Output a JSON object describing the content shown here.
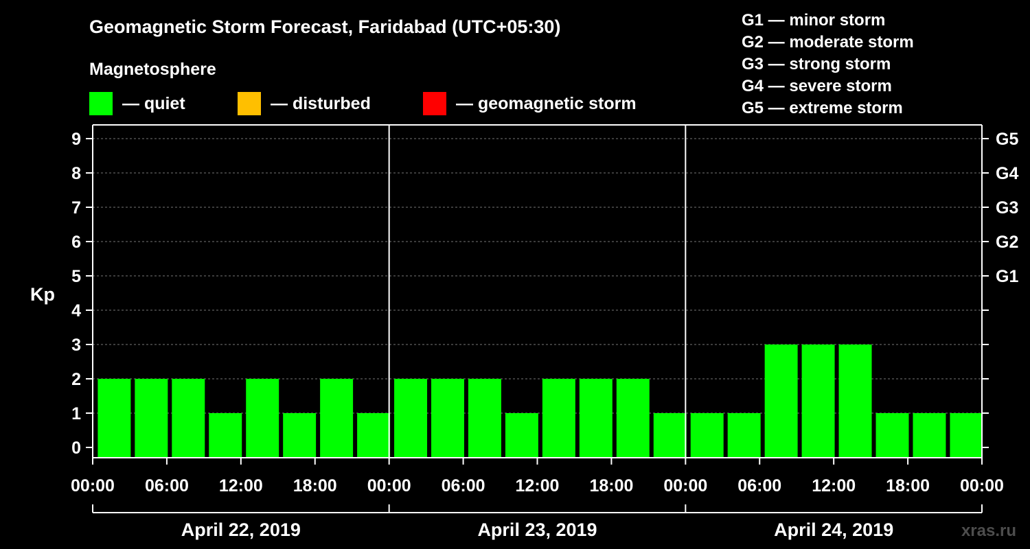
{
  "title": "Geomagnetic Storm Forecast, Faridabad (UTC+05:30)",
  "legend": {
    "heading": "Magnetosphere",
    "items": [
      {
        "label": "— quiet",
        "color": "#00ff00"
      },
      {
        "label": "— disturbed",
        "color": "#ffbf00"
      },
      {
        "label": "— geomagnetic storm",
        "color": "#ff0000"
      }
    ]
  },
  "storm_levels": [
    "G1 — minor storm",
    "G2 — moderate storm",
    "G3 — strong storm",
    "G4 — severe storm",
    "G5 — extreme storm"
  ],
  "watermark": "xras.ru",
  "chart_data": {
    "type": "bar",
    "ylabel": "Kp",
    "xlabel": "",
    "ylim": [
      0,
      9
    ],
    "y_ticks": [
      0,
      1,
      2,
      3,
      4,
      5,
      6,
      7,
      8,
      9
    ],
    "g_scale": [
      {
        "kp": 5,
        "label": "G1"
      },
      {
        "kp": 6,
        "label": "G2"
      },
      {
        "kp": 7,
        "label": "G3"
      },
      {
        "kp": 8,
        "label": "G4"
      },
      {
        "kp": 9,
        "label": "G5"
      }
    ],
    "x_tick_labels": [
      "00:00",
      "06:00",
      "12:00",
      "18:00",
      "00:00",
      "06:00",
      "12:00",
      "18:00",
      "00:00",
      "06:00",
      "12:00",
      "18:00",
      "00:00"
    ],
    "days": [
      "April 22, 2019",
      "April 23, 2019",
      "April 24, 2019"
    ],
    "grid": "horizontal dashed",
    "bar_color": "#00ff00",
    "categories": [
      "April 22 00:00",
      "April 22 03:00",
      "April 22 06:00",
      "April 22 09:00",
      "April 22 12:00",
      "April 22 15:00",
      "April 22 18:00",
      "April 22 21:00",
      "April 23 00:00",
      "April 23 03:00",
      "April 23 06:00",
      "April 23 09:00",
      "April 23 12:00",
      "April 23 15:00",
      "April 23 18:00",
      "April 23 21:00",
      "April 24 00:00",
      "April 24 03:00",
      "April 24 06:00",
      "April 24 09:00",
      "April 24 12:00",
      "April 24 15:00",
      "April 24 18:00",
      "April 24 21:00"
    ],
    "values": [
      2,
      2,
      2,
      1,
      2,
      1,
      2,
      1,
      2,
      2,
      2,
      1,
      2,
      2,
      2,
      1,
      1,
      1,
      3,
      3,
      3,
      1,
      1,
      1
    ]
  }
}
